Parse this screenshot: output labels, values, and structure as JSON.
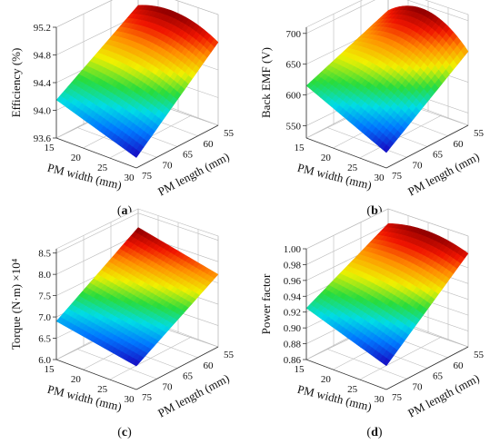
{
  "figure": {
    "panels": [
      {
        "letter": "a",
        "ylabel": "Efficiency (%)",
        "xlabel": "PM width (mm)",
        "zlabel": "PM length (mm)"
      },
      {
        "letter": "b",
        "ylabel": "Back EMF (V)",
        "xlabel": "PM width (mm)",
        "zlabel": "PM length (mm)"
      },
      {
        "letter": "c",
        "ylabel": "Torque (N·m) ×10⁴",
        "xlabel": "PM width (mm)",
        "zlabel": "PM length (mm)"
      },
      {
        "letter": "d",
        "ylabel": "Power factor",
        "xlabel": "PM width (mm)",
        "zlabel": "PM length (mm)"
      }
    ]
  },
  "chart_data": [
    {
      "type": "surface",
      "panel": "a",
      "ylabel": "Efficiency (%)",
      "xlabel": "PM width (mm)",
      "zlabel": "PM length (mm)",
      "x_ticks": [
        "15",
        "20",
        "25",
        "30"
      ],
      "z_ticks": [
        "75",
        "70",
        "65",
        "60",
        "55"
      ],
      "y_ticks": [
        "93.6",
        "94.0",
        "94.4",
        "94.8",
        "95.2"
      ],
      "xlim": [
        15,
        30
      ],
      "zlim": [
        55,
        75
      ],
      "ylim": [
        93.6,
        95.2
      ],
      "corners": {
        "w15_l75": 94.15,
        "w15_l55": 94.9,
        "w30_l55": 94.8,
        "w30_l75": 93.75
      },
      "peak": 95.05
    },
    {
      "type": "surface",
      "panel": "b",
      "ylabel": "Back EMF (V)",
      "xlabel": "PM width (mm)",
      "zlabel": "PM length (mm)",
      "x_ticks": [
        "15",
        "20",
        "25",
        "30"
      ],
      "z_ticks": [
        "75",
        "70",
        "65",
        "60",
        "55"
      ],
      "y_ticks": [
        "550",
        "600",
        "650",
        "700"
      ],
      "xlim": [
        15,
        30
      ],
      "zlim": [
        55,
        75
      ],
      "ylim": [
        530,
        710
      ],
      "corners": {
        "w15_l75": 615,
        "w15_l55": 668,
        "w30_l55": 650,
        "w30_l75": 555
      },
      "peak": 700
    },
    {
      "type": "surface",
      "panel": "c",
      "ylabel": "Torque (N·m) ×10⁴",
      "xlabel": "PM width (mm)",
      "zlabel": "PM length (mm)",
      "x_ticks": [
        "15",
        "20",
        "25",
        "30"
      ],
      "z_ticks": [
        "75",
        "70",
        "65",
        "60",
        "55"
      ],
      "y_ticks": [
        "6.0",
        "6.5",
        "7.0",
        "7.5",
        "8.0",
        "8.5"
      ],
      "xlim": [
        15,
        30
      ],
      "zlim": [
        55,
        75
      ],
      "ylim": [
        6.0,
        8.6
      ],
      "corners": {
        "w15_l75": 6.9,
        "w15_l55": 8.1,
        "w30_l55": 7.7,
        "w30_l75": 6.55
      },
      "peak": 8.1
    },
    {
      "type": "surface",
      "panel": "d",
      "ylabel": "Power factor",
      "xlabel": "PM width (mm)",
      "zlabel": "PM length (mm)",
      "x_ticks": [
        "15",
        "20",
        "25",
        "30"
      ],
      "z_ticks": [
        "75",
        "70",
        "65",
        "60",
        "55"
      ],
      "y_ticks": [
        "0.86",
        "0.88",
        "0.90",
        "0.92",
        "0.94",
        "0.96",
        "0.98",
        "1.00"
      ],
      "xlim": [
        15,
        30
      ],
      "zlim": [
        55,
        75
      ],
      "ylim": [
        0.86,
        1.0
      ],
      "corners": {
        "w15_l75": 0.925,
        "w15_l55": 0.978,
        "w30_l55": 0.978,
        "w30_l75": 0.89
      },
      "peak": 0.987
    }
  ]
}
